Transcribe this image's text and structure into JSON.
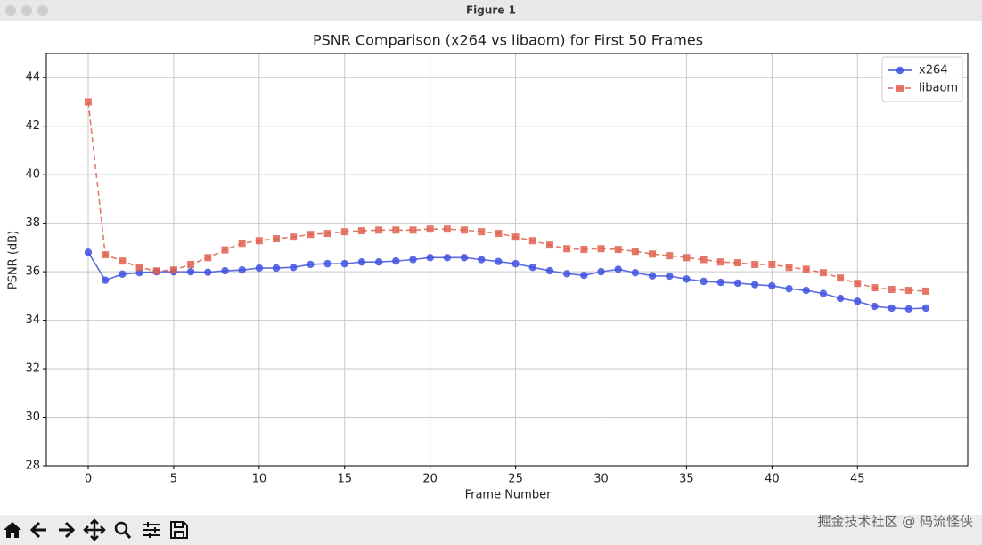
{
  "window_title": "Figure 1",
  "watermark": "掘金技术社区 @ 码流怪侠",
  "chart_data": {
    "type": "line",
    "title": "PSNR Comparison (x264 vs libaom) for First 50 Frames",
    "x_label": "Frame Number",
    "y_label": "PSNR (dB)",
    "x": [
      0,
      1,
      2,
      3,
      4,
      5,
      6,
      7,
      8,
      9,
      10,
      11,
      12,
      13,
      14,
      15,
      16,
      17,
      18,
      19,
      20,
      21,
      22,
      23,
      24,
      25,
      26,
      27,
      28,
      29,
      30,
      31,
      32,
      33,
      34,
      35,
      36,
      37,
      38,
      39,
      40,
      41,
      42,
      43,
      44,
      45,
      46,
      47,
      48,
      49
    ],
    "series": [
      {
        "name": "x264",
        "color": "#3f51e0",
        "marker": "circle",
        "linestyle": "solid",
        "values": [
          36.8,
          35.65,
          35.9,
          35.96,
          36.0,
          36.0,
          36.0,
          35.98,
          36.04,
          36.07,
          36.15,
          36.15,
          36.18,
          36.3,
          36.33,
          36.33,
          36.4,
          36.4,
          36.44,
          36.5,
          36.58,
          36.58,
          36.58,
          36.5,
          36.42,
          36.33,
          36.18,
          36.04,
          35.92,
          35.85,
          36.0,
          36.1,
          35.96,
          35.83,
          35.82,
          35.7,
          35.6,
          35.56,
          35.53,
          35.47,
          35.42,
          35.3,
          35.23,
          35.1,
          34.9,
          34.78,
          34.57,
          34.5,
          34.47,
          34.5
        ]
      },
      {
        "name": "libaom",
        "color": "#e0604e",
        "marker": "square",
        "linestyle": "dashed",
        "values": [
          43.0,
          36.7,
          36.44,
          36.18,
          36.03,
          36.07,
          36.3,
          36.58,
          36.9,
          37.17,
          37.28,
          37.36,
          37.43,
          37.54,
          37.58,
          37.65,
          37.69,
          37.72,
          37.72,
          37.72,
          37.76,
          37.76,
          37.72,
          37.65,
          37.58,
          37.43,
          37.28,
          37.1,
          36.95,
          36.92,
          36.95,
          36.92,
          36.84,
          36.73,
          36.66,
          36.58,
          36.5,
          36.4,
          36.37,
          36.3,
          36.3,
          36.18,
          36.1,
          35.96,
          35.74,
          35.52,
          35.34,
          35.27,
          35.23,
          35.2
        ]
      }
    ],
    "xlim": [
      -2.45,
      51.45
    ],
    "ylim": [
      28,
      45
    ],
    "xticks": [
      0,
      5,
      10,
      15,
      20,
      25,
      30,
      35,
      40,
      45
    ],
    "yticks": [
      28,
      30,
      32,
      34,
      36,
      38,
      40,
      42,
      44
    ],
    "grid": true,
    "legend": "upper right"
  }
}
